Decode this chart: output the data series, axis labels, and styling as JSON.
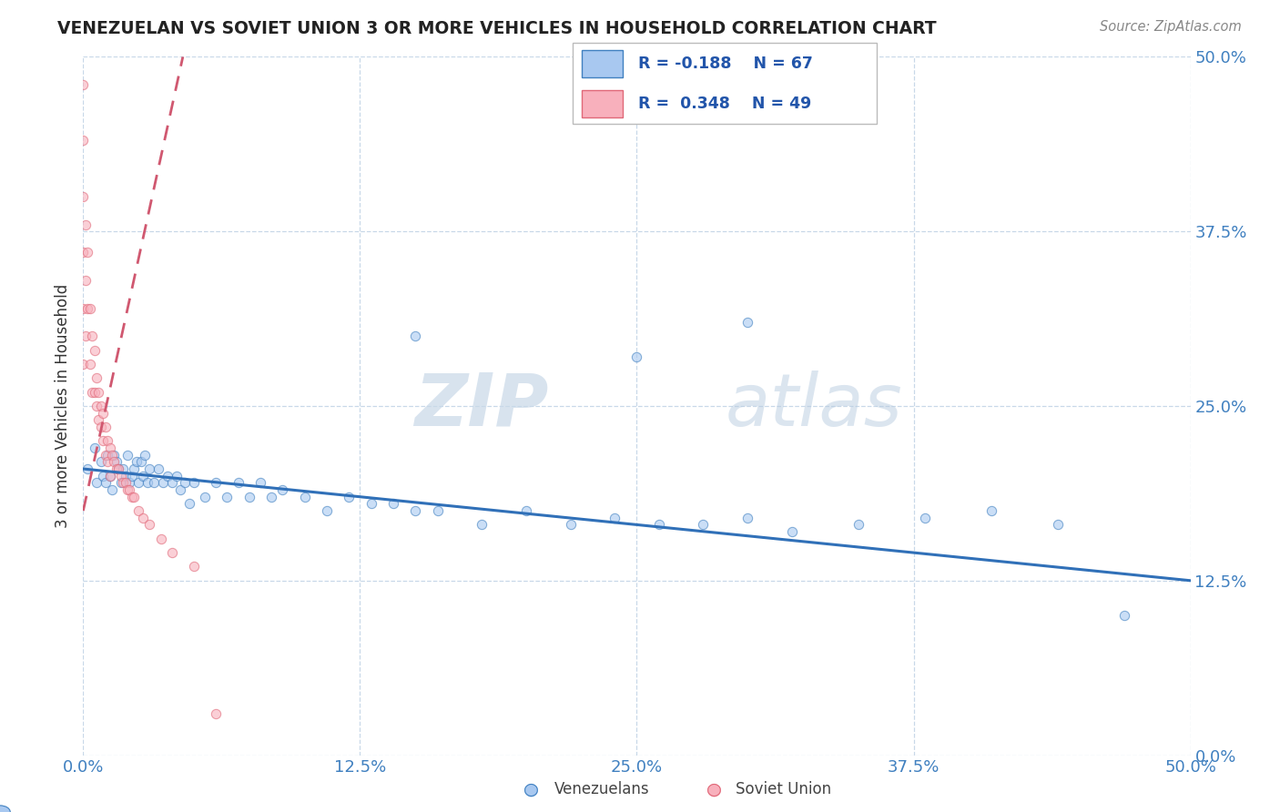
{
  "title": "VENEZUELAN VS SOVIET UNION 3 OR MORE VEHICLES IN HOUSEHOLD CORRELATION CHART",
  "source": "Source: ZipAtlas.com",
  "ylabel": "3 or more Vehicles in Household",
  "xlim": [
    0.0,
    0.5
  ],
  "ylim": [
    0.0,
    0.5
  ],
  "xtick_labels": [
    "0.0%",
    "12.5%",
    "25.0%",
    "37.5%",
    "50.0%"
  ],
  "xtick_vals": [
    0.0,
    0.125,
    0.25,
    0.375,
    0.5
  ],
  "ytick_labels": [
    "0.0%",
    "12.5%",
    "25.0%",
    "37.5%",
    "50.0%"
  ],
  "ytick_vals": [
    0.0,
    0.125,
    0.25,
    0.375,
    0.5
  ],
  "watermark_zip": "ZIP",
  "watermark_atlas": "atlas",
  "legend_blue_label": "R = -0.188    N = 67",
  "legend_pink_label": "R =  0.348    N = 49",
  "venezuelan_x": [
    0.002,
    0.005,
    0.006,
    0.008,
    0.009,
    0.01,
    0.011,
    0.012,
    0.013,
    0.014,
    0.015,
    0.016,
    0.017,
    0.018,
    0.019,
    0.02,
    0.021,
    0.022,
    0.023,
    0.024,
    0.025,
    0.026,
    0.027,
    0.028,
    0.029,
    0.03,
    0.032,
    0.034,
    0.036,
    0.038,
    0.04,
    0.042,
    0.044,
    0.046,
    0.048,
    0.05,
    0.055,
    0.06,
    0.065,
    0.07,
    0.075,
    0.08,
    0.085,
    0.09,
    0.1,
    0.11,
    0.12,
    0.13,
    0.14,
    0.15,
    0.16,
    0.18,
    0.2,
    0.22,
    0.24,
    0.26,
    0.28,
    0.3,
    0.32,
    0.35,
    0.38,
    0.41,
    0.44,
    0.47,
    0.15,
    0.25,
    0.3
  ],
  "venezuelan_y": [
    0.205,
    0.22,
    0.195,
    0.21,
    0.2,
    0.195,
    0.215,
    0.2,
    0.19,
    0.215,
    0.21,
    0.205,
    0.195,
    0.205,
    0.2,
    0.215,
    0.195,
    0.2,
    0.205,
    0.21,
    0.195,
    0.21,
    0.2,
    0.215,
    0.195,
    0.205,
    0.195,
    0.205,
    0.195,
    0.2,
    0.195,
    0.2,
    0.19,
    0.195,
    0.18,
    0.195,
    0.185,
    0.195,
    0.185,
    0.195,
    0.185,
    0.195,
    0.185,
    0.19,
    0.185,
    0.175,
    0.185,
    0.18,
    0.18,
    0.175,
    0.175,
    0.165,
    0.175,
    0.165,
    0.17,
    0.165,
    0.165,
    0.17,
    0.16,
    0.165,
    0.17,
    0.175,
    0.165,
    0.1,
    0.3,
    0.285,
    0.31
  ],
  "soviet_x": [
    0.0,
    0.0,
    0.0,
    0.0,
    0.0,
    0.0,
    0.001,
    0.001,
    0.001,
    0.002,
    0.002,
    0.003,
    0.003,
    0.004,
    0.004,
    0.005,
    0.005,
    0.006,
    0.006,
    0.007,
    0.007,
    0.008,
    0.008,
    0.009,
    0.009,
    0.01,
    0.01,
    0.011,
    0.011,
    0.012,
    0.012,
    0.013,
    0.014,
    0.015,
    0.016,
    0.017,
    0.018,
    0.019,
    0.02,
    0.021,
    0.022,
    0.023,
    0.025,
    0.027,
    0.03,
    0.035,
    0.04,
    0.05,
    0.06
  ],
  "soviet_y": [
    0.48,
    0.44,
    0.4,
    0.36,
    0.32,
    0.28,
    0.38,
    0.34,
    0.3,
    0.36,
    0.32,
    0.32,
    0.28,
    0.3,
    0.26,
    0.29,
    0.26,
    0.27,
    0.25,
    0.26,
    0.24,
    0.25,
    0.235,
    0.245,
    0.225,
    0.235,
    0.215,
    0.225,
    0.21,
    0.22,
    0.2,
    0.215,
    0.21,
    0.205,
    0.205,
    0.2,
    0.195,
    0.195,
    0.19,
    0.19,
    0.185,
    0.185,
    0.175,
    0.17,
    0.165,
    0.155,
    0.145,
    0.135,
    0.03
  ],
  "blue_line_x": [
    0.0,
    0.5
  ],
  "blue_line_y": [
    0.205,
    0.125
  ],
  "pink_line_x": [
    0.0,
    0.045
  ],
  "pink_line_y": [
    0.175,
    0.5
  ],
  "grid_color": "#c8d8e8",
  "dot_size": 55,
  "dot_alpha": 0.6,
  "venezuelan_face_color": "#a8c8f0",
  "venezuelan_edge_color": "#4080c0",
  "soviet_face_color": "#f8b0bc",
  "soviet_edge_color": "#e06878",
  "blue_line_color": "#3070b8",
  "pink_line_color": "#d05870",
  "tick_color": "#4080c0",
  "title_color": "#222222",
  "ylabel_color": "#333333"
}
